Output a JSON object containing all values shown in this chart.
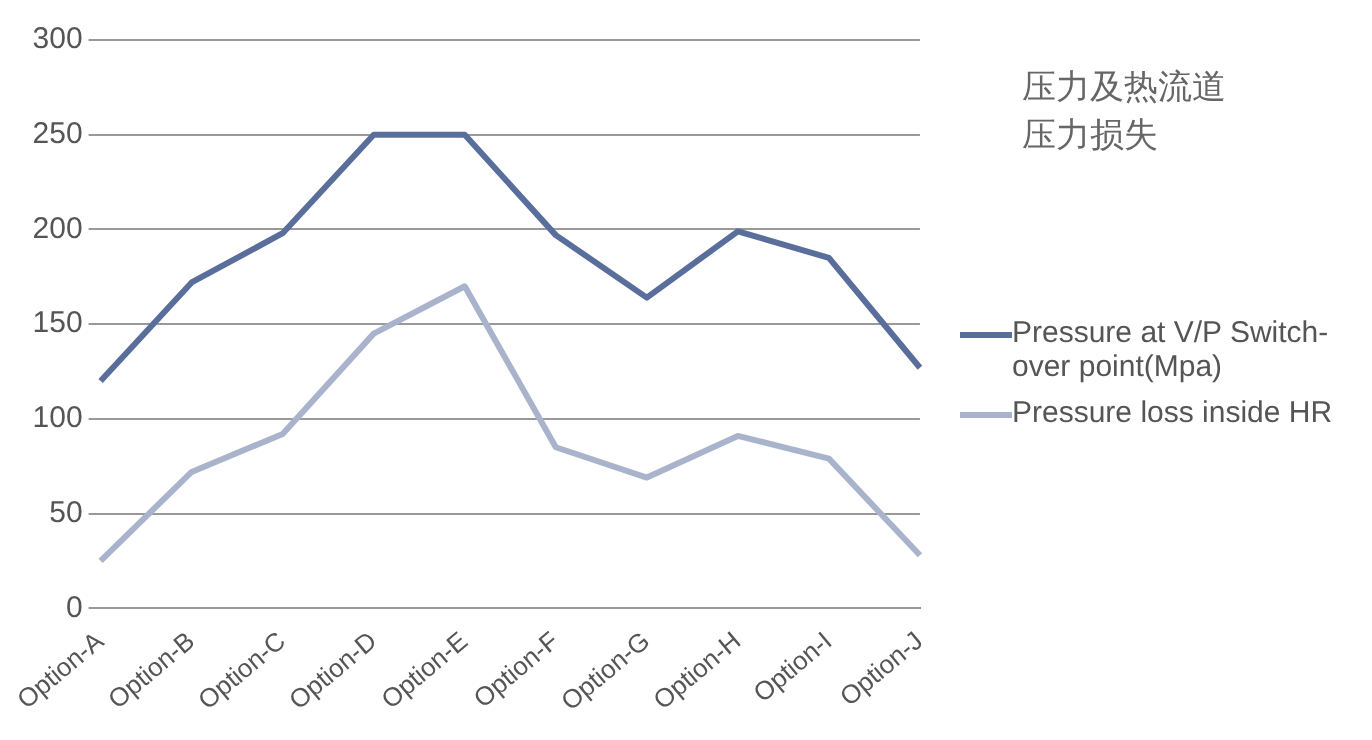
{
  "chart_data": {
    "type": "line",
    "title": "压力及热流道压力损失",
    "categories": [
      "Option-A",
      "Option-B",
      "Option-C",
      "Option-D",
      "Option-E",
      "Option-F",
      "Option-G",
      "Option-H",
      "Option-I",
      "Option-J"
    ],
    "series": [
      {
        "name": "Pressure at V/P Switch-over point(Mpa)",
        "color": "#5a6e9c",
        "values": [
          120,
          172,
          198,
          250,
          250,
          197,
          164,
          199,
          185,
          127
        ]
      },
      {
        "name": "Pressure loss inside HR",
        "color": "#a9b4cc",
        "values": [
          25,
          72,
          92,
          145,
          170,
          85,
          69,
          91,
          79,
          28
        ]
      }
    ],
    "ylim": [
      0,
      300
    ],
    "yticks": [
      0,
      50,
      100,
      150,
      200,
      250,
      300
    ],
    "grid": "y",
    "legend": "right",
    "marker": "none",
    "line_style": "solid"
  }
}
